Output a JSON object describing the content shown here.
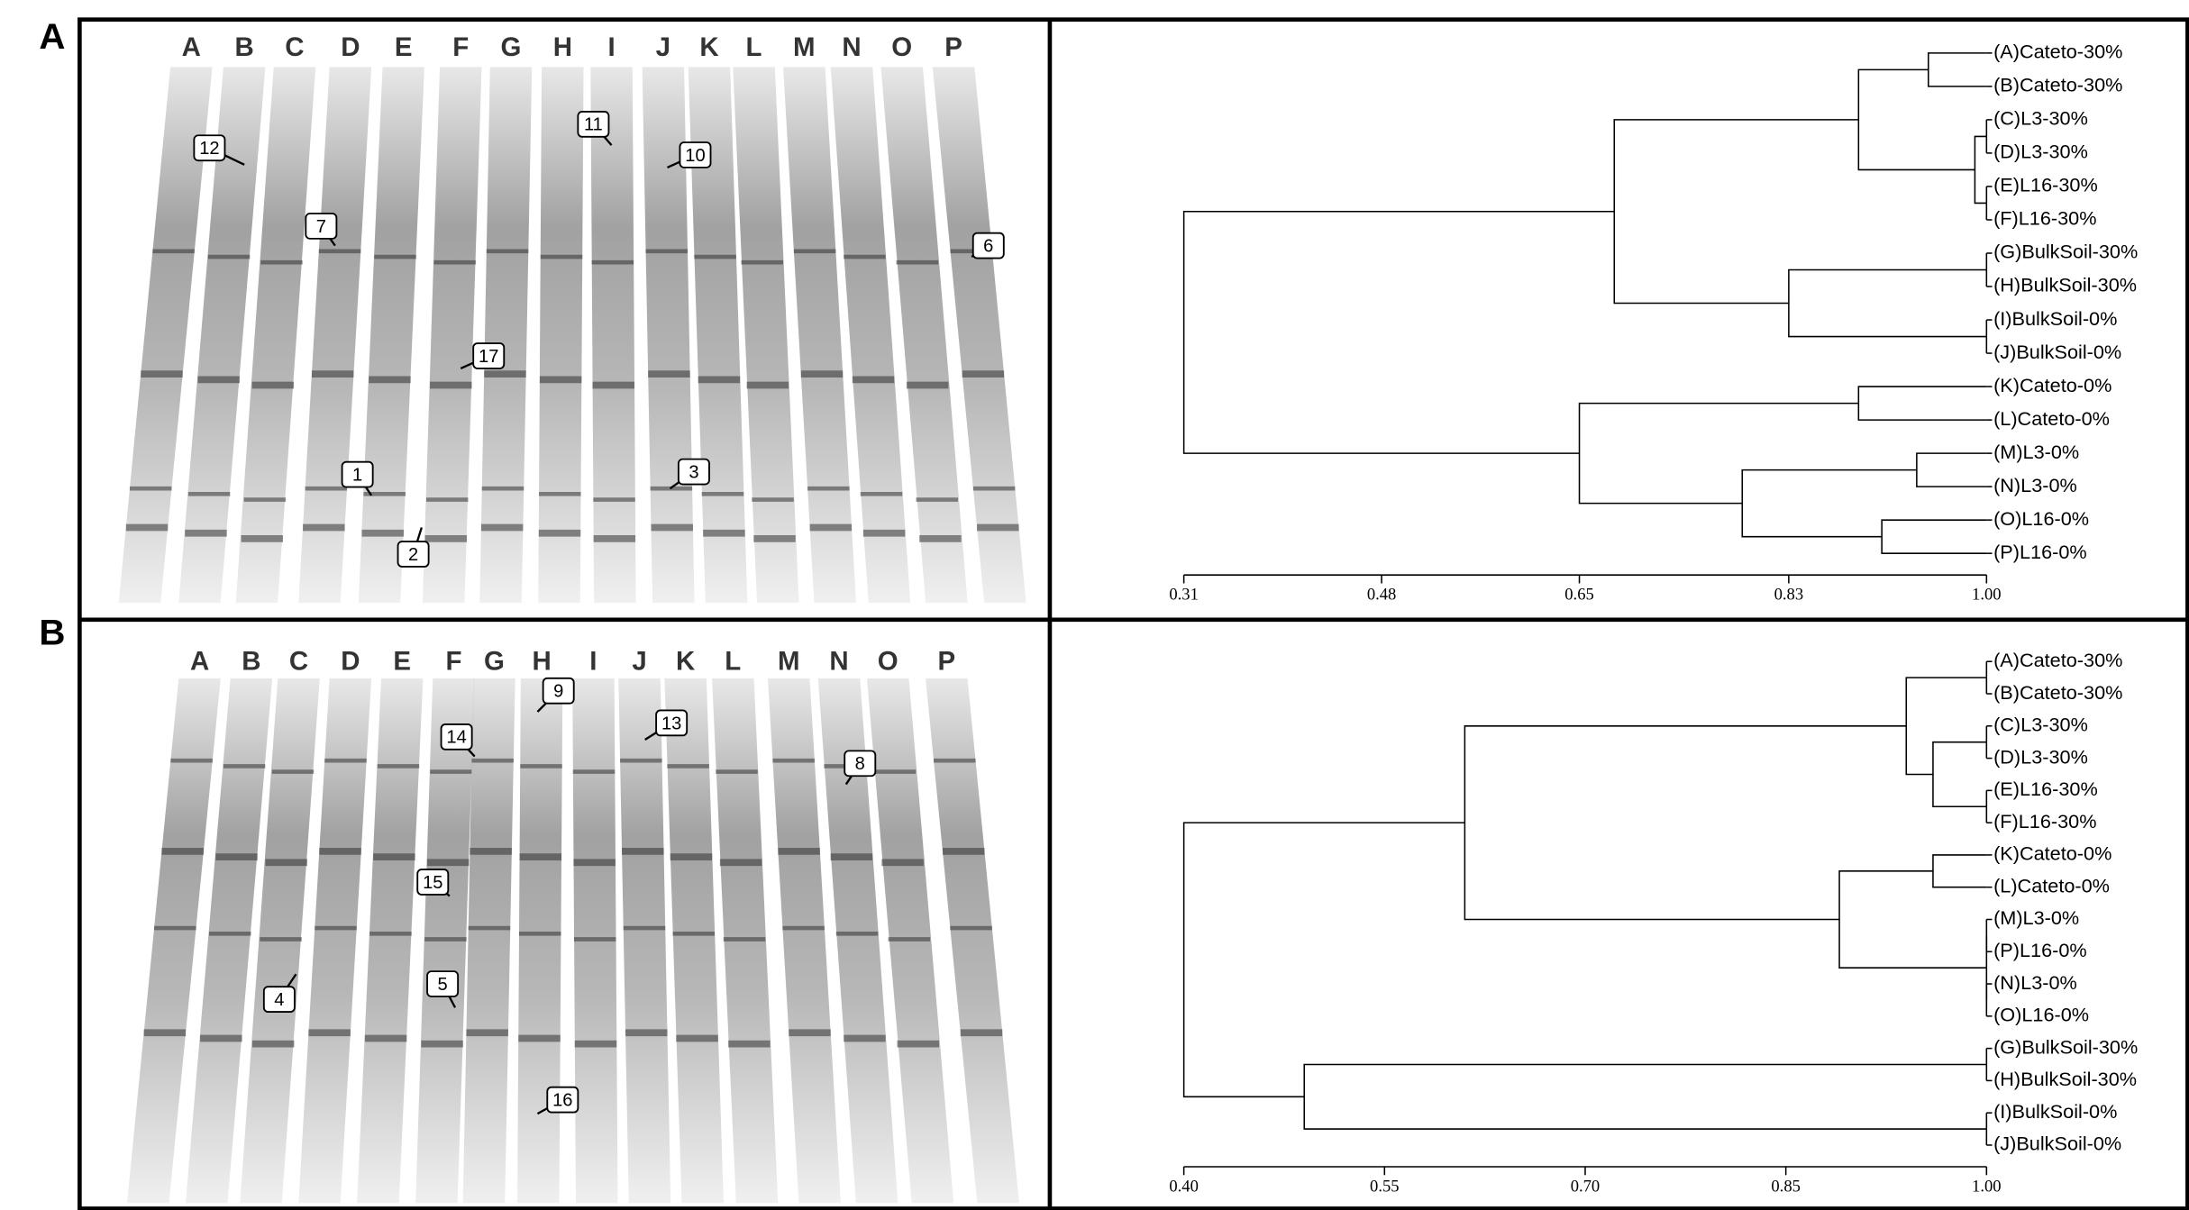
{
  "figure": {
    "panel_labels": [
      "A",
      "B"
    ],
    "gels": [
      {
        "lanes": [
          "A",
          "B",
          "C",
          "D",
          "E",
          "F",
          "G",
          "H",
          "I",
          "J",
          "K",
          "L",
          "M",
          "N",
          "O",
          "P"
        ],
        "band_labels": [
          "12",
          "7",
          "11",
          "10",
          "6",
          "17",
          "1",
          "3",
          "2"
        ]
      },
      {
        "lanes": [
          "A",
          "B",
          "C",
          "D",
          "E",
          "F",
          "G",
          "H",
          "I",
          "J",
          "K",
          "L",
          "M",
          "N",
          "O",
          "P"
        ],
        "band_labels": [
          "9",
          "14",
          "13",
          "8",
          "15",
          "4",
          "5",
          "16"
        ]
      }
    ]
  },
  "chart_data": [
    {
      "type": "dendrogram",
      "leaves": [
        "(A)Cateto-30%",
        "(B)Cateto-30%",
        "(C)L3-30%",
        "(D)L3-30%",
        "(E)L16-30%",
        "(F)L16-30%",
        "(G)BulkSoil-30%",
        "(H)BulkSoil-30%",
        "(I)BulkSoil-0%",
        "(J)BulkSoil-0%",
        "(K)Cateto-0%",
        "(L)Cateto-0%",
        "(M)L3-0%",
        "(N)L3-0%",
        "(O)L16-0%",
        "(P)L16-0%"
      ],
      "merges": [
        {
          "children": [
            0,
            1
          ],
          "height": 0.95
        },
        {
          "children": [
            2,
            3
          ],
          "height": 1.0
        },
        {
          "children": [
            4,
            5
          ],
          "height": 1.0
        },
        {
          "children": [
            17,
            18
          ],
          "height": 0.99
        },
        {
          "children": [
            16,
            19
          ],
          "height": 0.89
        },
        {
          "children": [
            6,
            7
          ],
          "height": 1.0
        },
        {
          "children": [
            8,
            9
          ],
          "height": 1.0
        },
        {
          "children": [
            21,
            22
          ],
          "height": 0.83
        },
        {
          "children": [
            20,
            23
          ],
          "height": 0.68
        },
        {
          "children": [
            10,
            11
          ],
          "height": 0.89
        },
        {
          "children": [
            12,
            13
          ],
          "height": 0.94
        },
        {
          "children": [
            14,
            15
          ],
          "height": 0.91
        },
        {
          "children": [
            26,
            27
          ],
          "height": 0.79
        },
        {
          "children": [
            25,
            28
          ],
          "height": 0.65
        },
        {
          "children": [
            24,
            29
          ],
          "height": 0.31
        }
      ],
      "xlim": [
        0.31,
        1.0
      ],
      "xticks": [
        0.31,
        0.48,
        0.65,
        0.83,
        {
          "value": 1.0,
          "label": "1.00"
        }
      ]
    },
    {
      "type": "dendrogram",
      "leaves": [
        "(A)Cateto-30%",
        "(B)Cateto-30%",
        "(C)L3-30%",
        "(D)L3-30%",
        "(E)L16-30%",
        "(F)L16-30%",
        "(K)Cateto-0%",
        "(L)Cateto-0%",
        "(M)L3-0%",
        "(P)L16-0%",
        "(N)L3-0%",
        "(O)L16-0%",
        "(G)BulkSoil-30%",
        "(H)BulkSoil-30%",
        "(I)BulkSoil-0%",
        "(J)BulkSoil-0%"
      ],
      "merges": [
        {
          "children": [
            0,
            1
          ],
          "height": 1.0
        },
        {
          "children": [
            2,
            3
          ],
          "height": 1.0
        },
        {
          "children": [
            4,
            5
          ],
          "height": 1.0
        },
        {
          "children": [
            17,
            18
          ],
          "height": 0.96
        },
        {
          "children": [
            16,
            19
          ],
          "height": 0.94
        },
        {
          "children": [
            6,
            7
          ],
          "height": 0.96
        },
        {
          "children": [
            8,
            9
          ],
          "height": 1.0
        },
        {
          "children": [
            10,
            11
          ],
          "height": 1.0
        },
        {
          "children": [
            22,
            23
          ],
          "height": 1.0
        },
        {
          "children": [
            21,
            24
          ],
          "height": 0.89
        },
        {
          "children": [
            20,
            25
          ],
          "height": 0.61
        },
        {
          "children": [
            12,
            13
          ],
          "height": 1.0
        },
        {
          "children": [
            14,
            15
          ],
          "height": 1.0
        },
        {
          "children": [
            27,
            28
          ],
          "height": 0.49
        },
        {
          "children": [
            26,
            29
          ],
          "height": 0.4
        }
      ],
      "xlim": [
        0.4,
        1.0
      ],
      "xticks": [
        {
          "value": 0.4,
          "label": "0.40"
        },
        0.55,
        {
          "value": 0.7,
          "label": "0.70"
        },
        0.85,
        {
          "value": 1.0,
          "label": "1.00"
        }
      ]
    }
  ]
}
